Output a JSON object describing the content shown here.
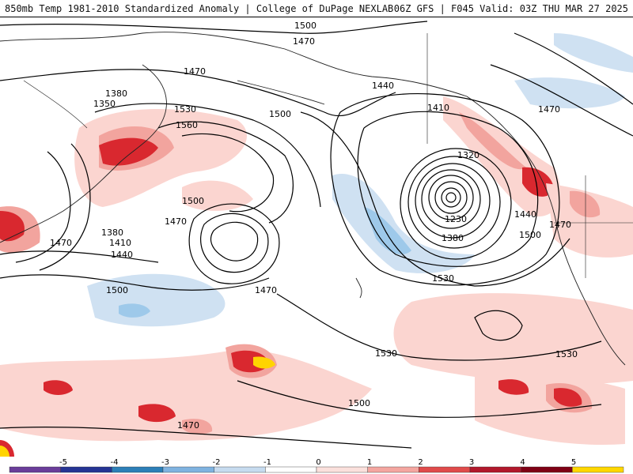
{
  "header": {
    "title_left": "850mb Temp 1981-2010 Standardized Anomaly | College of DuPage NEXLAB",
    "title_right": "06Z GFS | F045 Valid: 03Z THU MAR 27 2025"
  },
  "contour_labels": [
    "1500",
    "1470",
    "1470",
    "1440",
    "1410",
    "1380",
    "1350",
    "1530",
    "1560",
    "1500",
    "1500",
    "1470",
    "1380",
    "1410",
    "1440",
    "1470",
    "1320",
    "1230",
    "1380",
    "1440",
    "1470",
    "1500",
    "1500",
    "1470",
    "1530",
    "1530",
    "1530",
    "1500",
    "1470",
    "1470"
  ],
  "colorbar": {
    "ticks": [
      "-5",
      "-4",
      "-3",
      "-2",
      "-1",
      "0",
      "1",
      "2",
      "3",
      "4",
      "5"
    ],
    "colors": [
      "#6a3d9a",
      "#253494",
      "#2c7fb8",
      "#7fb3e0",
      "#c6dbef",
      "#ffffff",
      "#fbe0dc",
      "#f4a6a0",
      "#e04b4b",
      "#b2182b",
      "#7f0015",
      "#ffd700"
    ]
  },
  "colors": {
    "contour": "#000000",
    "coast": "#222222",
    "warm_light": "#fbd5d0",
    "warm_mid": "#f2a49e",
    "warm_strong": "#d9282f",
    "warm_extreme": "#a50f15",
    "cool_light": "#cfe1f2",
    "cool_mid": "#9ec9ea",
    "cool_strong": "#5ea6e0",
    "yellow": "#ffd400"
  }
}
